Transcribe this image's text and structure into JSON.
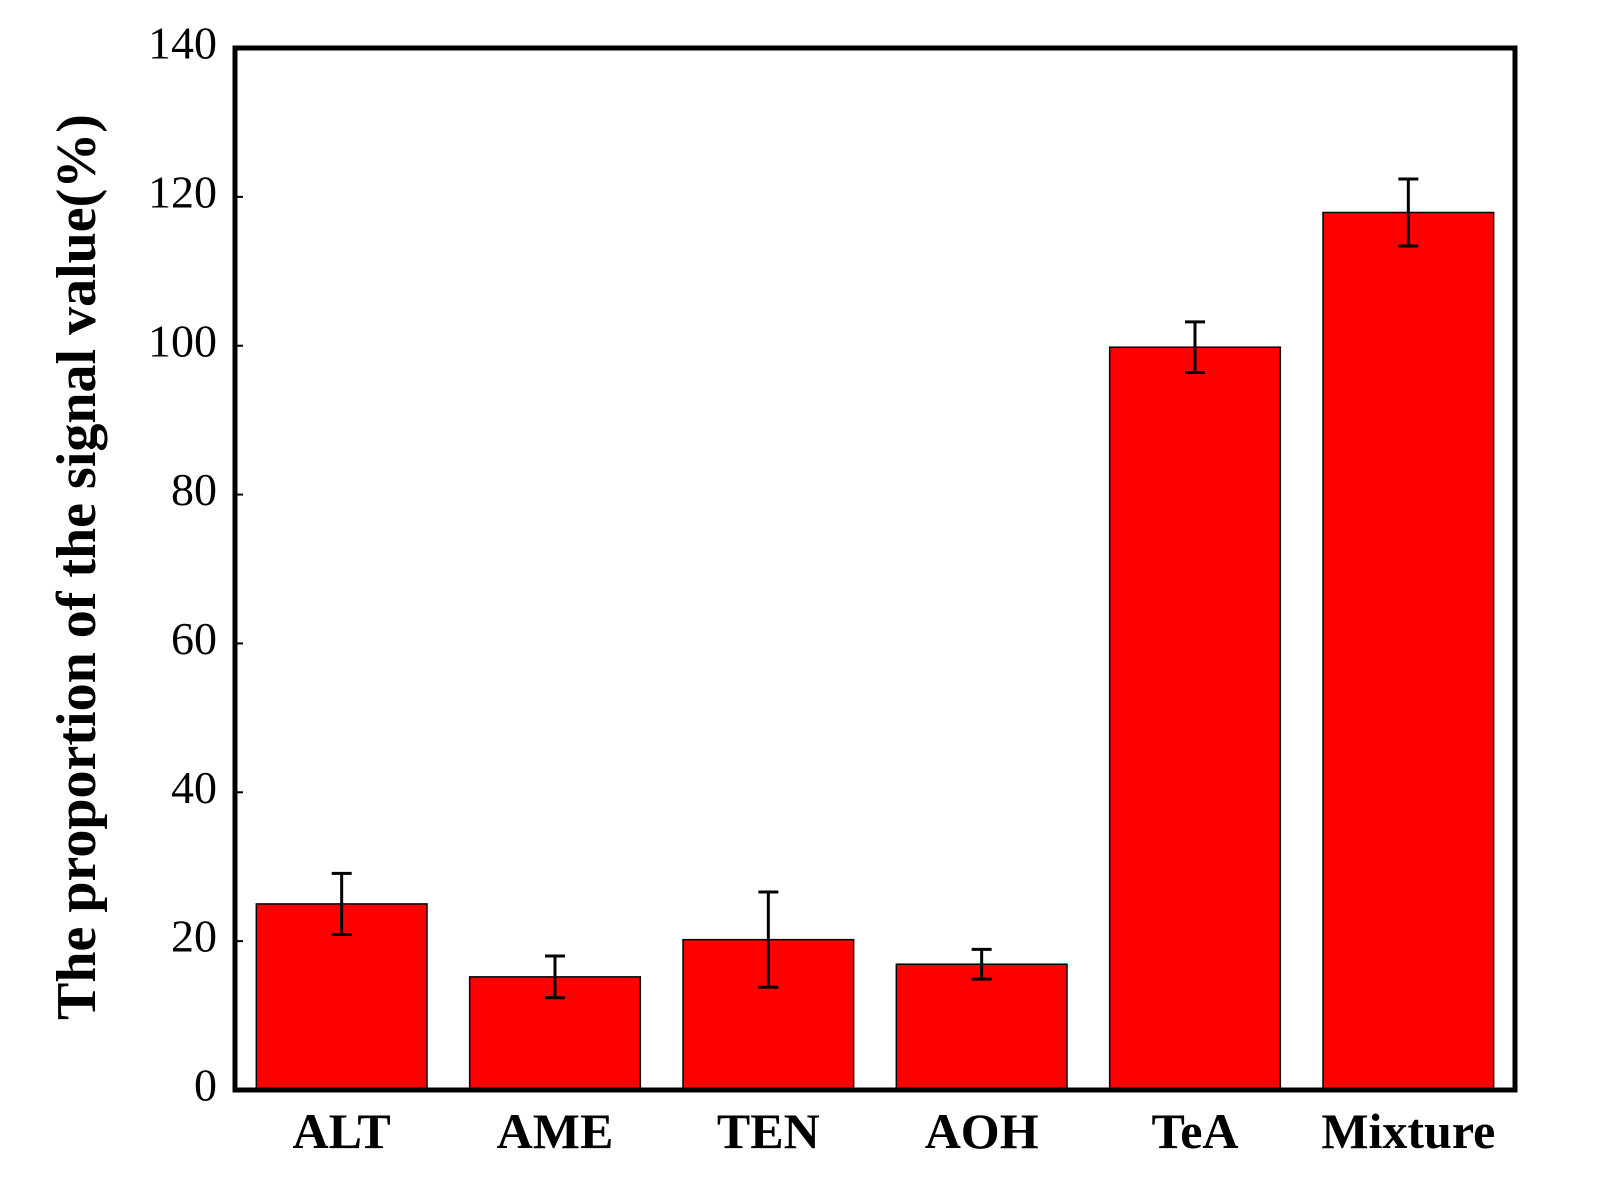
{
  "chart_data": {
    "type": "bar",
    "y_label": "The proportion of the signal value(%)",
    "categories": [
      "ALT",
      "AME",
      "TEN",
      "AOH",
      "TeA",
      "Mixture"
    ],
    "values": [
      25.0,
      15.2,
      20.2,
      16.9,
      99.8,
      117.9
    ],
    "errors": [
      4.1,
      2.8,
      6.4,
      2.0,
      3.4,
      4.5
    ],
    "color": "#ff0000",
    "ylim": [
      0,
      140
    ],
    "yticks": [
      0,
      20,
      40,
      60,
      80,
      100,
      120,
      140
    ]
  }
}
